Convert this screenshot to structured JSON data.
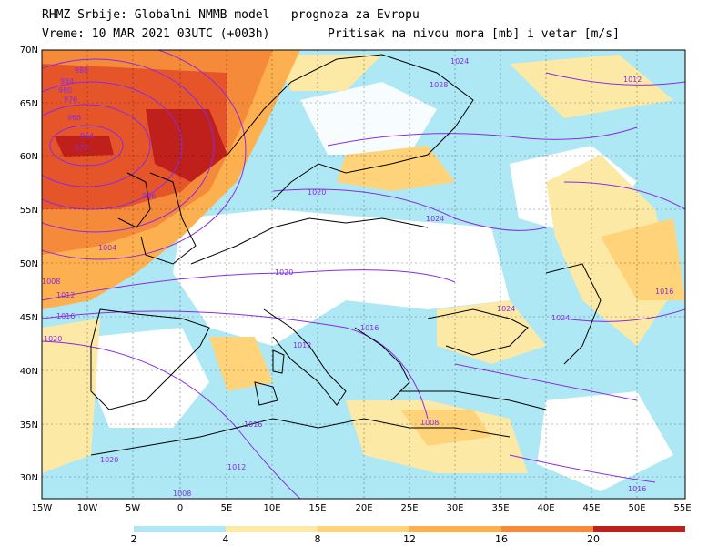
{
  "header": {
    "title": "RHMZ Srbije: Globalni NMMB model — prognoza za Evropu",
    "time": "Vreme: 10 MAR 2021 03UTC (+003h)",
    "field": "Pritisak na nivou mora [mb] i vetar [m/s]"
  },
  "axes": {
    "lat_labels": [
      "70N",
      "65N",
      "60N",
      "55N",
      "50N",
      "45N",
      "40N",
      "35N",
      "30N"
    ],
    "lon_labels": [
      "15W",
      "10W",
      "5W",
      "0",
      "5E",
      "10E",
      "15E",
      "20E",
      "25E",
      "30E",
      "35E",
      "40E",
      "45E",
      "50E",
      "55E"
    ]
  },
  "isobar_labels": [
    "988",
    "984",
    "980",
    "976",
    "968",
    "964",
    "972",
    "996",
    "1004",
    "1008",
    "1012",
    "1016",
    "1020",
    "1024",
    "1028",
    "1020",
    "1024",
    "1016",
    "1012",
    "1008",
    "1020",
    "1024",
    "1016",
    "1012",
    "1008",
    "1020",
    "1016",
    "1024",
    "1012",
    "1016"
  ],
  "colorbar": {
    "labels": [
      "2",
      "4",
      "8",
      "12",
      "16",
      "20"
    ],
    "colors": [
      "#aee8f5",
      "#fde9a6",
      "#fed37a",
      "#fdb04f",
      "#f58a3b",
      "#e6552a",
      "#c0201c"
    ]
  },
  "colors": {
    "isobar": "#8a2be2",
    "coast": "#000000",
    "land_calm": "#ffffff"
  }
}
